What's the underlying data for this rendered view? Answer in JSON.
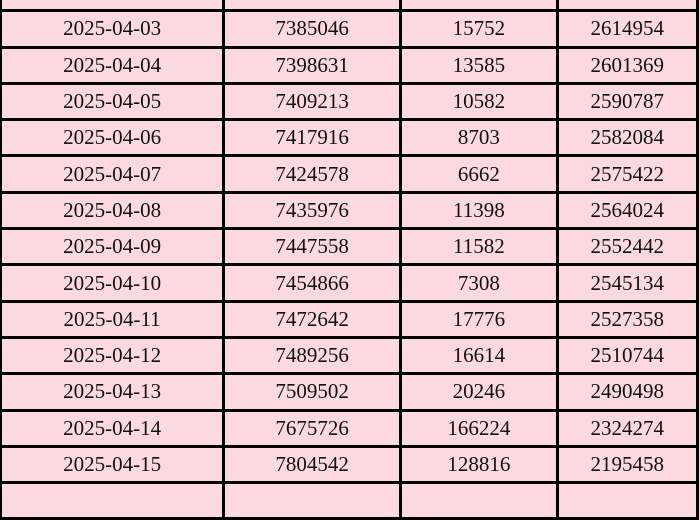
{
  "table": {
    "rows": [
      [
        "2025-04-03",
        "7385046",
        "15752",
        "2614954"
      ],
      [
        "2025-04-04",
        "7398631",
        "13585",
        "2601369"
      ],
      [
        "2025-04-05",
        "7409213",
        "10582",
        "2590787"
      ],
      [
        "2025-04-06",
        "7417916",
        "8703",
        "2582084"
      ],
      [
        "2025-04-07",
        "7424578",
        "6662",
        "2575422"
      ],
      [
        "2025-04-08",
        "7435976",
        "11398",
        "2564024"
      ],
      [
        "2025-04-09",
        "7447558",
        "11582",
        "2552442"
      ],
      [
        "2025-04-10",
        "7454866",
        "7308",
        "2545134"
      ],
      [
        "2025-04-11",
        "7472642",
        "17776",
        "2527358"
      ],
      [
        "2025-04-12",
        "7489256",
        "16614",
        "2510744"
      ],
      [
        "2025-04-13",
        "7509502",
        "20246",
        "2490498"
      ],
      [
        "2025-04-14",
        "7675726",
        "166224",
        "2324274"
      ],
      [
        "2025-04-15",
        "7804542",
        "128816",
        "2195458"
      ]
    ],
    "cell_background": "#fbd9de",
    "border_color": "#000000"
  }
}
